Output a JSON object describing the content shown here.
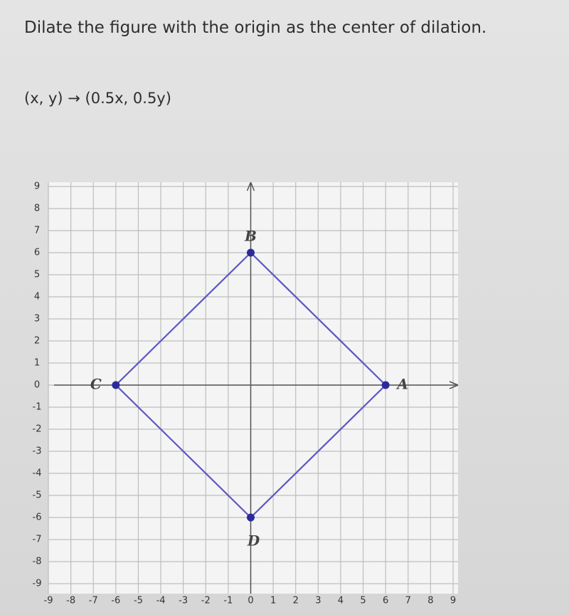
{
  "question": {
    "title": "Dilate the figure with the origin as the center of dilation.",
    "rule": "(x, y) → (0.5x, 0.5y)"
  },
  "chart_data": {
    "type": "polygon",
    "labels": [
      "A",
      "B",
      "C",
      "D"
    ],
    "x": [
      6,
      0,
      -6,
      0
    ],
    "y": [
      0,
      6,
      0,
      -6
    ],
    "color": "#5b57c4",
    "point_color": "#2b2a9c",
    "xlim": [
      -9,
      9
    ],
    "ylim": [
      -9,
      9
    ],
    "xticks": [
      -9,
      -8,
      -7,
      -6,
      -5,
      -4,
      -3,
      -2,
      -1,
      0,
      1,
      2,
      3,
      4,
      5,
      6,
      7,
      8,
      9
    ],
    "yticks": [
      -9,
      -8,
      -7,
      -6,
      -5,
      -4,
      -3,
      -2,
      -1,
      0,
      1,
      2,
      3,
      4,
      5,
      6,
      7,
      8,
      9
    ],
    "grid": true
  }
}
